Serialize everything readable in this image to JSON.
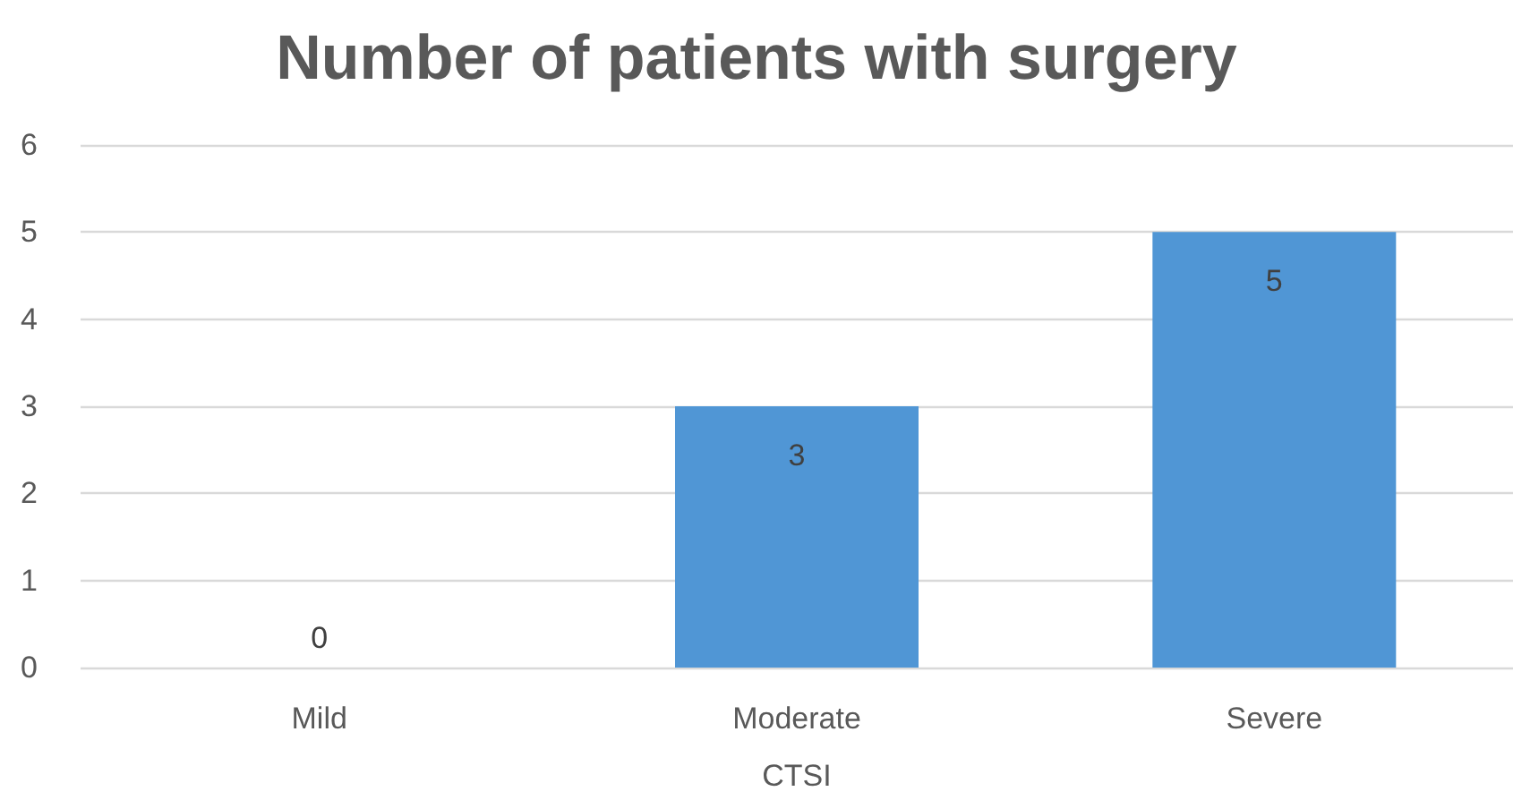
{
  "chart_data": {
    "type": "bar",
    "title": "Number of patients with surgery",
    "xlabel": "CTSI",
    "categories": [
      "Mild",
      "Moderate",
      "Severe"
    ],
    "values": [
      0,
      3,
      5
    ],
    "color": "#5096d5",
    "ylim": [
      0,
      6
    ],
    "yticks": [
      0,
      1,
      2,
      3,
      4,
      5,
      6
    ],
    "grid": "y",
    "data_labels": true
  }
}
